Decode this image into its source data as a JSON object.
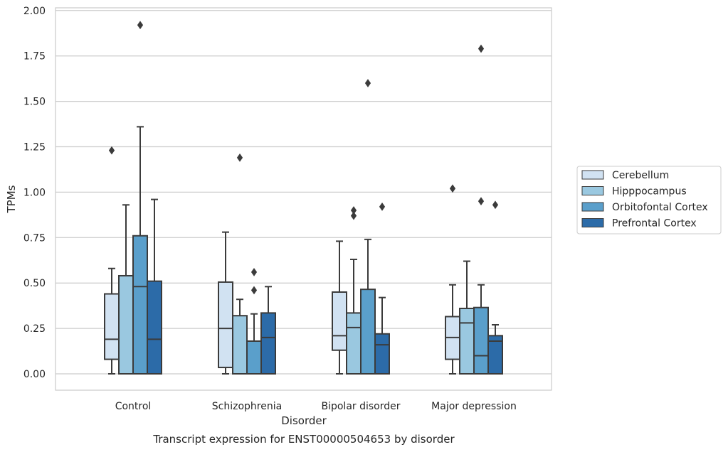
{
  "chart_data": {
    "type": "boxplot",
    "title": "Transcript expression for ENST00000504653 by disorder",
    "xlabel": "Disorder",
    "ylabel": "TPMs",
    "ylim": [
      -0.09,
      2.02
    ],
    "yticks": [
      "0.00",
      "0.25",
      "0.50",
      "0.75",
      "1.00",
      "1.25",
      "1.50",
      "1.75",
      "2.00"
    ],
    "ytick_values": [
      0,
      0.25,
      0.5,
      0.75,
      1.0,
      1.25,
      1.5,
      1.75,
      2.0
    ],
    "grid": "horizontal",
    "legend_position": "right",
    "categories": [
      "Control",
      "Schizophrenia",
      "Bipolar disorder",
      "Major depression"
    ],
    "series": [
      {
        "name": "Cerebellum",
        "color": "#d1e2f2",
        "boxes": [
          {
            "whislo": 0.0,
            "q1": 0.08,
            "med": 0.19,
            "q3": 0.44,
            "whishi": 0.58,
            "fliers": [
              1.23
            ]
          },
          {
            "whislo": 0.0,
            "q1": 0.035,
            "med": 0.25,
            "q3": 0.505,
            "whishi": 0.78,
            "fliers": []
          },
          {
            "whislo": 0.0,
            "q1": 0.13,
            "med": 0.21,
            "q3": 0.45,
            "whishi": 0.73,
            "fliers": []
          },
          {
            "whislo": 0.0,
            "q1": 0.08,
            "med": 0.2,
            "q3": 0.315,
            "whishi": 0.49,
            "fliers": [
              1.02
            ]
          }
        ]
      },
      {
        "name": "Hipppocampus",
        "color": "#9ac8e0",
        "boxes": [
          {
            "whislo": 0.0,
            "q1": 0.0,
            "med": 0.0,
            "q3": 0.54,
            "whishi": 0.93,
            "fliers": []
          },
          {
            "whislo": 0.0,
            "q1": 0.0,
            "med": 0.0,
            "q3": 0.32,
            "whishi": 0.41,
            "fliers": [
              1.19
            ]
          },
          {
            "whislo": 0.0,
            "q1": 0.0,
            "med": 0.255,
            "q3": 0.335,
            "whishi": 0.63,
            "fliers": [
              0.87,
              0.9
            ]
          },
          {
            "whislo": 0.0,
            "q1": 0.0,
            "med": 0.28,
            "q3": 0.36,
            "whishi": 0.62,
            "fliers": []
          }
        ]
      },
      {
        "name": "Orbitofontal Cortex",
        "color": "#5a9fcb",
        "boxes": [
          {
            "whislo": 0.0,
            "q1": 0.0,
            "med": 0.48,
            "q3": 0.76,
            "whishi": 1.36,
            "fliers": [
              1.92
            ]
          },
          {
            "whislo": 0.0,
            "q1": 0.0,
            "med": 0.0,
            "q3": 0.18,
            "whishi": 0.33,
            "fliers": [
              0.46,
              0.56
            ]
          },
          {
            "whislo": 0.0,
            "q1": 0.0,
            "med": 0.0,
            "q3": 0.465,
            "whishi": 0.74,
            "fliers": [
              1.6
            ]
          },
          {
            "whislo": 0.0,
            "q1": 0.0,
            "med": 0.1,
            "q3": 0.365,
            "whishi": 0.49,
            "fliers": [
              0.95,
              1.79
            ]
          }
        ]
      },
      {
        "name": "Prefrontal Cortex",
        "color": "#2c6ba8",
        "boxes": [
          {
            "whislo": 0.0,
            "q1": 0.0,
            "med": 0.19,
            "q3": 0.51,
            "whishi": 0.96,
            "fliers": []
          },
          {
            "whislo": 0.0,
            "q1": 0.0,
            "med": 0.2,
            "q3": 0.335,
            "whishi": 0.48,
            "fliers": []
          },
          {
            "whislo": 0.0,
            "q1": 0.0,
            "med": 0.16,
            "q3": 0.22,
            "whishi": 0.42,
            "fliers": [
              0.92
            ]
          },
          {
            "whislo": 0.0,
            "q1": 0.0,
            "med": 0.18,
            "q3": 0.21,
            "whishi": 0.27,
            "fliers": [
              0.93
            ]
          }
        ]
      }
    ]
  }
}
